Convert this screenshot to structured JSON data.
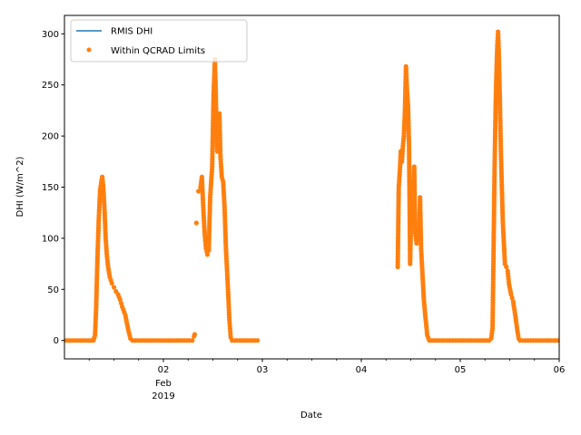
{
  "chart_data": {
    "type": "line",
    "title": "",
    "xlabel": "Date",
    "ylabel": "DHI (W/m^2)",
    "legend_position": "top-left",
    "grid": false,
    "xlim": [
      "2019-02-01T00:00",
      "2019-02-06T00:00"
    ],
    "ylim": [
      -18,
      318
    ],
    "x_ticks": [
      {
        "x": "2019-02-02T00:00",
        "label": "02",
        "sublabels": [
          "Feb",
          "2019"
        ]
      },
      {
        "x": "2019-02-03T00:00",
        "label": "03",
        "sublabels": []
      },
      {
        "x": "2019-02-04T00:00",
        "label": "04",
        "sublabels": []
      },
      {
        "x": "2019-02-05T00:00",
        "label": "05",
        "sublabels": []
      },
      {
        "x": "2019-02-06T00:00",
        "label": "06",
        "sublabels": []
      }
    ],
    "y_ticks": [
      0,
      50,
      100,
      150,
      200,
      250,
      300
    ],
    "colors": {
      "line": "#1f77b4",
      "points": "#ff7f0e"
    },
    "series": [
      {
        "name": "RMIS DHI",
        "style": "line",
        "color": "#1f77b4",
        "segments": [
          [
            [
              "2019-02-01T00:00",
              0
            ],
            [
              "2019-02-01T07:00",
              0
            ],
            [
              "2019-02-01T07:25",
              5
            ],
            [
              "2019-02-01T07:40",
              30
            ],
            [
              "2019-02-01T08:00",
              80
            ],
            [
              "2019-02-01T08:20",
              120
            ],
            [
              "2019-02-01T08:40",
              148
            ],
            [
              "2019-02-01T09:00",
              157
            ],
            [
              "2019-02-01T09:10",
              160
            ],
            [
              "2019-02-01T09:25",
              150
            ],
            [
              "2019-02-01T09:45",
              125
            ],
            [
              "2019-02-01T10:00",
              100
            ],
            [
              "2019-02-01T10:15",
              85
            ],
            [
              "2019-02-01T10:35",
              72
            ],
            [
              "2019-02-01T11:00",
              62
            ],
            [
              "2019-02-01T11:30",
              56
            ],
            [
              "2019-02-01T12:00",
              52
            ],
            [
              "2019-02-01T12:30",
              48
            ],
            [
              "2019-02-01T13:00",
              45
            ],
            [
              "2019-02-01T13:30",
              40
            ],
            [
              "2019-02-01T14:00",
              33
            ],
            [
              "2019-02-01T14:45",
              25
            ],
            [
              "2019-02-01T15:30",
              10
            ],
            [
              "2019-02-01T16:00",
              2
            ],
            [
              "2019-02-01T16:30",
              0
            ],
            [
              "2019-02-02T07:00",
              0
            ],
            [
              "2019-02-02T07:25",
              4
            ],
            [
              "2019-02-02T07:35",
              6
            ]
          ],
          [
            [
              "2019-02-02T08:30",
              146
            ],
            [
              "2019-02-02T09:00",
              150
            ],
            [
              "2019-02-02T09:20",
              160
            ],
            [
              "2019-02-02T09:40",
              130
            ],
            [
              "2019-02-02T10:00",
              105
            ],
            [
              "2019-02-02T10:20",
              90
            ],
            [
              "2019-02-02T10:40",
              84
            ],
            [
              "2019-02-02T11:00",
              88
            ],
            [
              "2019-02-02T11:20",
              140
            ],
            [
              "2019-02-02T11:50",
              170
            ],
            [
              "2019-02-02T12:10",
              240
            ],
            [
              "2019-02-02T12:30",
              275
            ],
            [
              "2019-02-02T12:40",
              248
            ],
            [
              "2019-02-02T12:55",
              200
            ],
            [
              "2019-02-02T13:05",
              185
            ],
            [
              "2019-02-02T13:20",
              215
            ],
            [
              "2019-02-02T13:35",
              222
            ],
            [
              "2019-02-02T13:50",
              180
            ],
            [
              "2019-02-02T14:10",
              160
            ],
            [
              "2019-02-02T14:30",
              155
            ],
            [
              "2019-02-02T14:50",
              130
            ],
            [
              "2019-02-02T15:10",
              90
            ],
            [
              "2019-02-02T15:40",
              50
            ],
            [
              "2019-02-02T16:00",
              20
            ],
            [
              "2019-02-02T16:20",
              3
            ],
            [
              "2019-02-02T16:40",
              0
            ],
            [
              "2019-02-02T22:50",
              0
            ]
          ],
          [
            [
              "2019-02-04T08:50",
              72
            ],
            [
              "2019-02-04T09:05",
              150
            ],
            [
              "2019-02-04T09:20",
              165
            ],
            [
              "2019-02-04T09:35",
              185
            ],
            [
              "2019-02-04T09:50",
              175
            ],
            [
              "2019-02-04T10:05",
              190
            ],
            [
              "2019-02-04T10:20",
              200
            ],
            [
              "2019-02-04T10:35",
              225
            ],
            [
              "2019-02-04T10:50",
              268
            ],
            [
              "2019-02-04T11:05",
              245
            ],
            [
              "2019-02-04T11:20",
              230
            ],
            [
              "2019-02-04T11:35",
              190
            ],
            [
              "2019-02-04T11:50",
              75
            ],
            [
              "2019-02-04T12:05",
              120
            ],
            [
              "2019-02-04T12:20",
              155
            ],
            [
              "2019-02-04T12:35",
              140
            ],
            [
              "2019-02-04T12:50",
              170
            ],
            [
              "2019-02-04T13:05",
              105
            ],
            [
              "2019-02-04T13:25",
              95
            ],
            [
              "2019-02-04T13:45",
              110
            ],
            [
              "2019-02-04T14:00",
              100
            ],
            [
              "2019-02-04T14:15",
              140
            ],
            [
              "2019-02-04T14:30",
              90
            ],
            [
              "2019-02-04T14:50",
              65
            ],
            [
              "2019-02-04T15:10",
              40
            ],
            [
              "2019-02-04T15:30",
              25
            ],
            [
              "2019-02-04T16:00",
              5
            ],
            [
              "2019-02-04T16:30",
              0
            ],
            [
              "2019-02-05T07:00",
              0
            ],
            [
              "2019-02-05T07:30",
              2
            ],
            [
              "2019-02-05T07:50",
              12
            ],
            [
              "2019-02-05T08:05",
              90
            ],
            [
              "2019-02-05T08:20",
              170
            ],
            [
              "2019-02-05T08:35",
              230
            ],
            [
              "2019-02-05T08:50",
              270
            ],
            [
              "2019-02-05T09:00",
              290
            ],
            [
              "2019-02-05T09:10",
              302
            ],
            [
              "2019-02-05T09:20",
              285
            ],
            [
              "2019-02-05T09:35",
              240
            ],
            [
              "2019-02-05T09:50",
              190
            ],
            [
              "2019-02-05T10:05",
              150
            ],
            [
              "2019-02-05T10:20",
              115
            ],
            [
              "2019-02-05T10:35",
              95
            ],
            [
              "2019-02-05T10:50",
              75
            ],
            [
              "2019-02-05T11:10",
              72
            ],
            [
              "2019-02-05T11:30",
              68
            ],
            [
              "2019-02-05T11:50",
              55
            ],
            [
              "2019-02-05T12:20",
              45
            ],
            [
              "2019-02-05T12:50",
              38
            ],
            [
              "2019-02-05T13:20",
              25
            ],
            [
              "2019-02-05T13:50",
              10
            ],
            [
              "2019-02-05T14:10",
              2
            ],
            [
              "2019-02-05T14:30",
              0
            ],
            [
              "2019-02-06T00:00",
              0
            ]
          ]
        ]
      },
      {
        "name": "Within QCRAD Limits",
        "style": "points",
        "color": "#ff7f0e",
        "note_style": "dots",
        "segments": [
          [
            [
              "2019-02-01T00:00",
              0
            ],
            [
              "2019-02-01T07:00",
              0
            ],
            [
              "2019-02-01T07:25",
              5
            ],
            [
              "2019-02-01T07:40",
              30
            ],
            [
              "2019-02-01T08:00",
              80
            ],
            [
              "2019-02-01T08:20",
              120
            ],
            [
              "2019-02-01T08:40",
              148
            ],
            [
              "2019-02-01T09:00",
              157
            ],
            [
              "2019-02-01T09:10",
              160
            ],
            [
              "2019-02-01T09:25",
              150
            ],
            [
              "2019-02-01T09:45",
              125
            ],
            [
              "2019-02-01T10:00",
              100
            ],
            [
              "2019-02-01T10:15",
              85
            ],
            [
              "2019-02-01T10:35",
              72
            ],
            [
              "2019-02-01T11:00",
              62
            ],
            [
              "2019-02-01T11:30",
              56
            ],
            [
              "2019-02-01T12:00",
              52
            ],
            [
              "2019-02-01T12:30",
              48
            ],
            [
              "2019-02-01T13:00",
              45
            ],
            [
              "2019-02-01T13:30",
              40
            ],
            [
              "2019-02-01T14:00",
              33
            ],
            [
              "2019-02-01T14:45",
              25
            ],
            [
              "2019-02-01T15:30",
              10
            ],
            [
              "2019-02-01T16:00",
              2
            ],
            [
              "2019-02-01T16:30",
              0
            ],
            [
              "2019-02-02T07:00",
              0
            ],
            [
              "2019-02-02T07:25",
              4
            ],
            [
              "2019-02-02T07:35",
              6
            ]
          ],
          [
            [
              "2019-02-02T08:00",
              115
            ]
          ],
          [
            [
              "2019-02-02T08:30",
              146
            ],
            [
              "2019-02-02T09:00",
              150
            ],
            [
              "2019-02-02T09:20",
              160
            ],
            [
              "2019-02-02T09:40",
              130
            ],
            [
              "2019-02-02T10:00",
              105
            ],
            [
              "2019-02-02T10:20",
              90
            ],
            [
              "2019-02-02T10:40",
              84
            ],
            [
              "2019-02-02T11:00",
              88
            ],
            [
              "2019-02-02T11:20",
              140
            ],
            [
              "2019-02-02T11:50",
              170
            ],
            [
              "2019-02-02T12:10",
              240
            ],
            [
              "2019-02-02T12:30",
              275
            ],
            [
              "2019-02-02T12:40",
              248
            ],
            [
              "2019-02-02T12:55",
              200
            ],
            [
              "2019-02-02T13:05",
              185
            ],
            [
              "2019-02-02T13:20",
              215
            ],
            [
              "2019-02-02T13:35",
              222
            ],
            [
              "2019-02-02T13:50",
              180
            ],
            [
              "2019-02-02T14:10",
              160
            ],
            [
              "2019-02-02T14:30",
              155
            ],
            [
              "2019-02-02T14:50",
              130
            ],
            [
              "2019-02-02T15:10",
              90
            ],
            [
              "2019-02-02T15:40",
              50
            ],
            [
              "2019-02-02T16:00",
              20
            ],
            [
              "2019-02-02T16:20",
              3
            ],
            [
              "2019-02-02T16:40",
              0
            ],
            [
              "2019-02-02T22:50",
              0
            ]
          ],
          [
            [
              "2019-02-04T08:50",
              72
            ],
            [
              "2019-02-04T09:05",
              150
            ],
            [
              "2019-02-04T09:20",
              165
            ],
            [
              "2019-02-04T09:35",
              185
            ],
            [
              "2019-02-04T09:50",
              175
            ],
            [
              "2019-02-04T10:05",
              190
            ],
            [
              "2019-02-04T10:20",
              200
            ],
            [
              "2019-02-04T10:35",
              225
            ],
            [
              "2019-02-04T10:50",
              268
            ],
            [
              "2019-02-04T11:05",
              245
            ],
            [
              "2019-02-04T11:20",
              230
            ],
            [
              "2019-02-04T11:35",
              190
            ],
            [
              "2019-02-04T11:50",
              75
            ],
            [
              "2019-02-04T12:05",
              120
            ],
            [
              "2019-02-04T12:20",
              155
            ],
            [
              "2019-02-04T12:35",
              140
            ],
            [
              "2019-02-04T12:50",
              170
            ],
            [
              "2019-02-04T13:05",
              105
            ],
            [
              "2019-02-04T13:25",
              95
            ],
            [
              "2019-02-04T13:45",
              110
            ],
            [
              "2019-02-04T14:00",
              100
            ],
            [
              "2019-02-04T14:15",
              140
            ],
            [
              "2019-02-04T14:30",
              90
            ],
            [
              "2019-02-04T14:50",
              65
            ],
            [
              "2019-02-04T15:10",
              40
            ],
            [
              "2019-02-04T15:30",
              25
            ],
            [
              "2019-02-04T16:00",
              5
            ],
            [
              "2019-02-04T16:30",
              0
            ],
            [
              "2019-02-05T07:00",
              0
            ],
            [
              "2019-02-05T07:30",
              2
            ],
            [
              "2019-02-05T07:50",
              12
            ],
            [
              "2019-02-05T08:05",
              90
            ],
            [
              "2019-02-05T08:20",
              170
            ],
            [
              "2019-02-05T08:35",
              230
            ],
            [
              "2019-02-05T08:50",
              270
            ],
            [
              "2019-02-05T09:00",
              290
            ],
            [
              "2019-02-05T09:10",
              302
            ],
            [
              "2019-02-05T09:20",
              285
            ],
            [
              "2019-02-05T09:35",
              240
            ],
            [
              "2019-02-05T09:50",
              190
            ],
            [
              "2019-02-05T10:05",
              150
            ],
            [
              "2019-02-05T10:20",
              115
            ],
            [
              "2019-02-05T10:35",
              95
            ],
            [
              "2019-02-05T10:50",
              75
            ],
            [
              "2019-02-05T11:10",
              72
            ],
            [
              "2019-02-05T11:30",
              68
            ],
            [
              "2019-02-05T11:50",
              55
            ],
            [
              "2019-02-05T12:20",
              45
            ],
            [
              "2019-02-05T12:50",
              38
            ],
            [
              "2019-02-05T13:20",
              25
            ],
            [
              "2019-02-05T13:50",
              10
            ],
            [
              "2019-02-05T14:10",
              2
            ],
            [
              "2019-02-05T14:30",
              0
            ],
            [
              "2019-02-06T00:00",
              0
            ]
          ]
        ]
      }
    ]
  }
}
